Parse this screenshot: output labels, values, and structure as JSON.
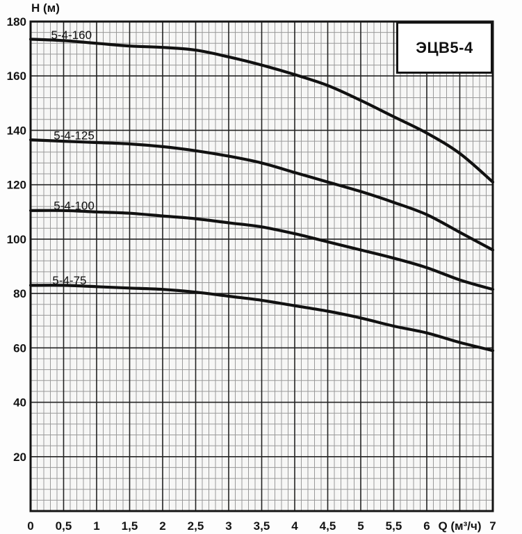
{
  "title_box": {
    "label": "ЭЦВ5-4"
  },
  "style": {
    "curve_color": "#111111",
    "major_grid_color": "#222222",
    "minor_grid_color": "#999999",
    "border_color": "#141414",
    "plot_background": "#f7f7f6"
  },
  "chart_data": {
    "type": "line",
    "title": "ЭЦВ5-4",
    "xlabel": "Q (м³/ч)",
    "ylabel": "H (м)",
    "xlim": [
      0,
      7
    ],
    "ylim": [
      0,
      180
    ],
    "x_major_step": 0.5,
    "x_minor_step": 0.1,
    "y_major_step": 20,
    "y_minor_step": 4,
    "grid": "on",
    "legend_position": "labels-on-curves",
    "x_ticks": [
      {
        "v": 0,
        "label": "0"
      },
      {
        "v": 0.5,
        "label": "0,5"
      },
      {
        "v": 1,
        "label": "1"
      },
      {
        "v": 1.5,
        "label": "1,5"
      },
      {
        "v": 2,
        "label": "2"
      },
      {
        "v": 2.5,
        "label": "2,5"
      },
      {
        "v": 3,
        "label": "3"
      },
      {
        "v": 3.5,
        "label": "3,5"
      },
      {
        "v": 4,
        "label": "4"
      },
      {
        "v": 4.5,
        "label": "4,5"
      },
      {
        "v": 5,
        "label": "5"
      },
      {
        "v": 5.5,
        "label": "5,5"
      },
      {
        "v": 6,
        "label": "6"
      },
      {
        "v": 6.5,
        "label": "Q (м³/ч)"
      },
      {
        "v": 7,
        "label": "7"
      }
    ],
    "y_ticks": [
      {
        "v": 20,
        "label": "20"
      },
      {
        "v": 40,
        "label": "40"
      },
      {
        "v": 60,
        "label": "60"
      },
      {
        "v": 80,
        "label": "80"
      },
      {
        "v": 100,
        "label": "100"
      },
      {
        "v": 120,
        "label": "120"
      },
      {
        "v": 140,
        "label": "140"
      },
      {
        "v": 160,
        "label": "160"
      },
      {
        "v": 180,
        "label": "180"
      }
    ],
    "x": [
      0,
      0.5,
      1,
      1.5,
      2,
      2.5,
      3,
      3.5,
      4,
      4.5,
      5,
      5.5,
      6,
      6.5,
      7
    ],
    "series": [
      {
        "name": "5-4-160",
        "values": [
          173.5,
          173,
          172,
          171,
          170.5,
          169.5,
          167,
          164,
          160.5,
          156.5,
          151,
          145,
          139,
          131.5,
          121
        ],
        "label_x": 0.31
      },
      {
        "name": "5-4-125",
        "values": [
          136.5,
          136,
          135.5,
          135,
          134,
          132.5,
          130.5,
          128,
          124.5,
          121,
          117.5,
          113.5,
          109,
          102.5,
          96
        ],
        "label_x": 0.35
      },
      {
        "name": "5-4-100",
        "values": [
          110.5,
          110.5,
          110,
          109.5,
          108.5,
          107.5,
          106,
          104.5,
          102,
          99,
          96,
          93,
          89.5,
          85,
          81.5
        ],
        "label_x": 0.35
      },
      {
        "name": "5-4-75",
        "values": [
          83,
          83,
          82.5,
          82,
          81.5,
          80.5,
          79,
          77.5,
          75.5,
          73.5,
          71,
          68,
          65.5,
          62,
          59
        ],
        "label_x": 0.33
      }
    ]
  }
}
